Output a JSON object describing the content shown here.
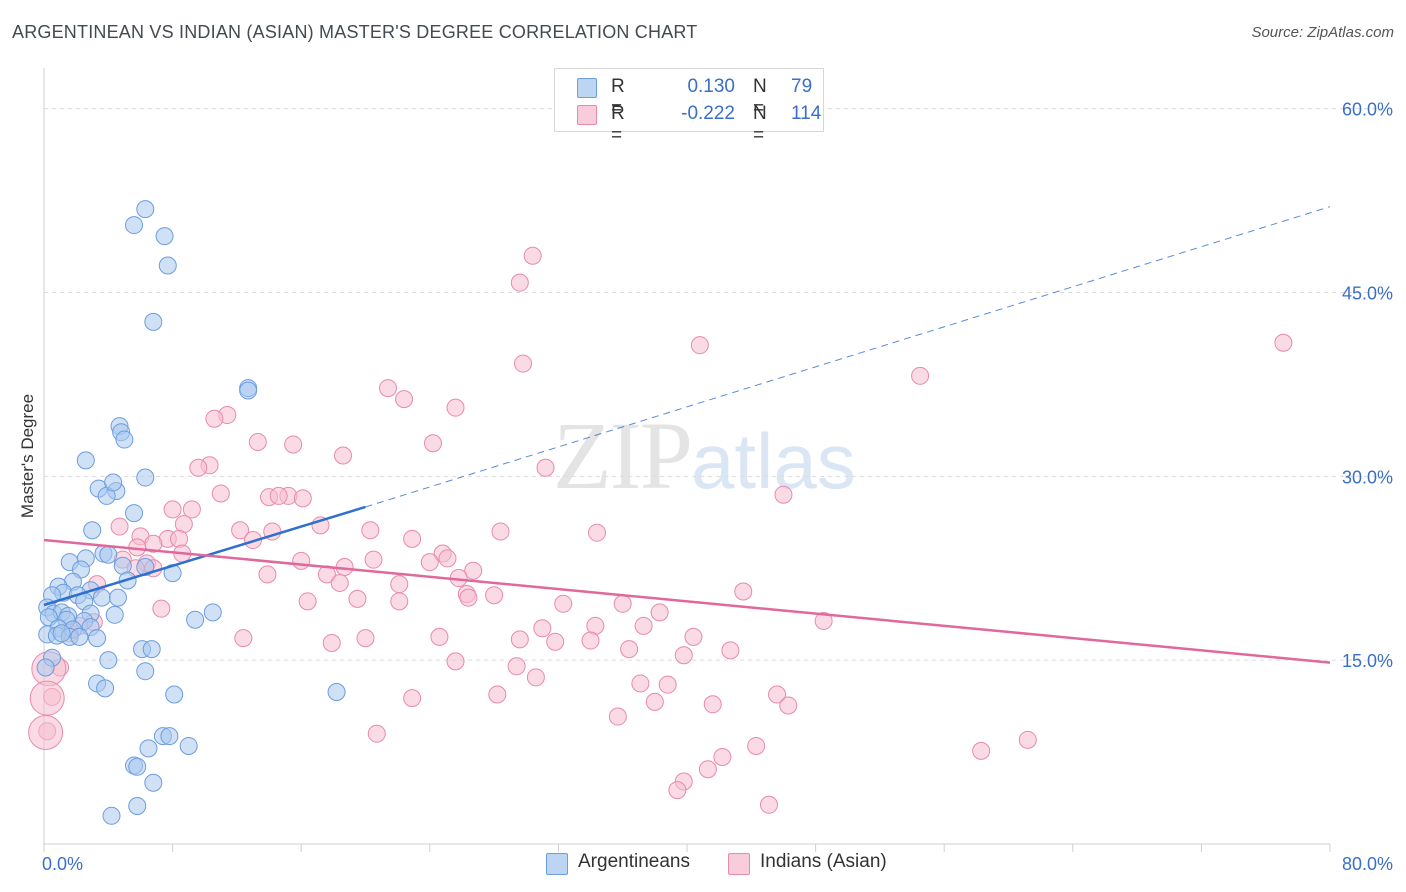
{
  "title": "ARGENTINEAN VS INDIAN (ASIAN) MASTER'S DEGREE CORRELATION CHART",
  "source": "Source: ZipAtlas.com",
  "watermark": {
    "zip": "ZIP",
    "atlas": "atlas"
  },
  "legend": {
    "r_label": "R =",
    "n_label": "N =",
    "argentineans": {
      "r": "0.130",
      "n": "79"
    },
    "indians": {
      "r": "-0.222",
      "n": "114"
    }
  },
  "colors": {
    "blue_fill": "#a9c8ef",
    "blue_stroke": "#6b9de0",
    "blue_line": "#2f6fcf",
    "pink_fill": "#f6bdd0",
    "pink_stroke": "#e88aaa",
    "pink_line": "#e0689a",
    "axis_label": "#3a6fc9",
    "grid": "#dcdcdc"
  },
  "chart_data": {
    "type": "scatter",
    "title": "ARGENTINEAN VS INDIAN (ASIAN) MASTER'S DEGREE CORRELATION CHART",
    "xlabel": "",
    "ylabel": "Master's Degree",
    "xlim": [
      0,
      80
    ],
    "ylim": [
      0,
      62.5
    ],
    "x_tick_labels": [
      {
        "value": 0,
        "label": "0.0%"
      },
      {
        "value": 80,
        "label": "80.0%"
      }
    ],
    "y_tick_labels": [
      {
        "value": 15,
        "label": "15.0%"
      },
      {
        "value": 30,
        "label": "30.0%"
      },
      {
        "value": 45,
        "label": "45.0%"
      },
      {
        "value": 60,
        "label": "60.0%"
      }
    ],
    "legend_position": "top-center",
    "series": [
      {
        "name": "Argentineans",
        "r": 0.13,
        "n": 79,
        "trend": {
          "x0": 0,
          "y0": 19.5,
          "x1": 20,
          "y1": 27.5,
          "dashed_to_x": 80,
          "dashed_to_y": 52
        },
        "points": [
          [
            6.3,
            51.8
          ],
          [
            5.6,
            50.5
          ],
          [
            7.5,
            49.6
          ],
          [
            7.7,
            47.2
          ],
          [
            6.8,
            42.6
          ],
          [
            12.7,
            37.2
          ],
          [
            12.7,
            37.0
          ],
          [
            4.7,
            34.1
          ],
          [
            4.8,
            33.6
          ],
          [
            5.0,
            33.0
          ],
          [
            2.6,
            31.3
          ],
          [
            6.3,
            29.9
          ],
          [
            3.4,
            29.0
          ],
          [
            4.5,
            28.8
          ],
          [
            3.9,
            28.4
          ],
          [
            5.6,
            27.0
          ],
          [
            3.0,
            25.6
          ],
          [
            4.3,
            29.5
          ],
          [
            3.7,
            23.7
          ],
          [
            4.0,
            23.6
          ],
          [
            2.6,
            23.3
          ],
          [
            1.6,
            23.0
          ],
          [
            4.9,
            22.7
          ],
          [
            6.3,
            22.6
          ],
          [
            2.3,
            22.4
          ],
          [
            8.0,
            22.1
          ],
          [
            5.2,
            21.5
          ],
          [
            1.8,
            21.4
          ],
          [
            0.9,
            21.0
          ],
          [
            2.9,
            20.7
          ],
          [
            1.2,
            20.5
          ],
          [
            2.1,
            20.3
          ],
          [
            3.6,
            20.1
          ],
          [
            0.5,
            20.3
          ],
          [
            4.6,
            20.1
          ],
          [
            2.5,
            19.8
          ],
          [
            0.2,
            19.3
          ],
          [
            0.6,
            18.8
          ],
          [
            1.1,
            18.9
          ],
          [
            2.9,
            18.8
          ],
          [
            1.5,
            18.6
          ],
          [
            4.4,
            18.7
          ],
          [
            10.5,
            18.9
          ],
          [
            0.3,
            18.5
          ],
          [
            1.4,
            18.3
          ],
          [
            2.5,
            18.2
          ],
          [
            9.4,
            18.3
          ],
          [
            0.9,
            17.6
          ],
          [
            1.8,
            17.5
          ],
          [
            2.9,
            17.7
          ],
          [
            0.2,
            17.1
          ],
          [
            0.8,
            17.0
          ],
          [
            1.6,
            16.9
          ],
          [
            2.2,
            16.9
          ],
          [
            1.1,
            17.2
          ],
          [
            3.3,
            16.8
          ],
          [
            6.1,
            15.9
          ],
          [
            6.7,
            15.9
          ],
          [
            0.5,
            15.2
          ],
          [
            4.0,
            15.0
          ],
          [
            0.1,
            14.4
          ],
          [
            6.3,
            14.1
          ],
          [
            3.3,
            13.1
          ],
          [
            3.8,
            12.7
          ],
          [
            8.1,
            12.2
          ],
          [
            18.2,
            12.4
          ],
          [
            7.4,
            8.8
          ],
          [
            7.8,
            8.8
          ],
          [
            6.5,
            7.8
          ],
          [
            9.0,
            8.0
          ],
          [
            5.6,
            6.4
          ],
          [
            5.8,
            6.3
          ],
          [
            6.8,
            5.0
          ],
          [
            5.8,
            3.1
          ],
          [
            4.2,
            2.3
          ]
        ]
      },
      {
        "name": "Indians (Asian)",
        "r": -0.222,
        "n": 114,
        "trend": {
          "x0": 0,
          "y0": 24.8,
          "x1": 80,
          "y1": 14.8
        },
        "points": [
          [
            30.4,
            48.0
          ],
          [
            29.6,
            45.8
          ],
          [
            40.8,
            40.7
          ],
          [
            77.1,
            40.9
          ],
          [
            29.8,
            39.2
          ],
          [
            54.5,
            38.2
          ],
          [
            21.4,
            37.2
          ],
          [
            22.4,
            36.3
          ],
          [
            25.6,
            35.6
          ],
          [
            11.4,
            35.0
          ],
          [
            10.6,
            34.7
          ],
          [
            13.3,
            32.8
          ],
          [
            15.5,
            32.6
          ],
          [
            24.2,
            32.7
          ],
          [
            18.6,
            31.7
          ],
          [
            10.3,
            30.9
          ],
          [
            9.6,
            30.7
          ],
          [
            31.2,
            30.7
          ],
          [
            11.0,
            28.6
          ],
          [
            46.0,
            28.5
          ],
          [
            14.0,
            28.3
          ],
          [
            15.2,
            28.4
          ],
          [
            14.6,
            28.4
          ],
          [
            16.1,
            28.2
          ],
          [
            8.0,
            27.3
          ],
          [
            9.2,
            27.3
          ],
          [
            8.7,
            26.1
          ],
          [
            4.7,
            25.9
          ],
          [
            17.2,
            26.0
          ],
          [
            12.2,
            25.6
          ],
          [
            14.2,
            25.5
          ],
          [
            20.3,
            25.6
          ],
          [
            28.4,
            25.5
          ],
          [
            34.4,
            25.4
          ],
          [
            6.0,
            25.1
          ],
          [
            7.7,
            24.9
          ],
          [
            8.4,
            24.9
          ],
          [
            13.0,
            24.8
          ],
          [
            22.9,
            24.9
          ],
          [
            6.8,
            24.5
          ],
          [
            5.8,
            24.2
          ],
          [
            8.6,
            23.7
          ],
          [
            24.8,
            23.7
          ],
          [
            4.9,
            23.2
          ],
          [
            16.0,
            23.1
          ],
          [
            25.1,
            23.3
          ],
          [
            20.5,
            23.2
          ],
          [
            24.0,
            23.0
          ],
          [
            6.4,
            22.9
          ],
          [
            5.7,
            22.5
          ],
          [
            6.8,
            22.5
          ],
          [
            18.7,
            22.6
          ],
          [
            26.7,
            22.3
          ],
          [
            17.6,
            22.0
          ],
          [
            13.9,
            22.0
          ],
          [
            25.8,
            21.7
          ],
          [
            3.3,
            21.2
          ],
          [
            18.4,
            21.3
          ],
          [
            26.3,
            20.4
          ],
          [
            22.1,
            21.2
          ],
          [
            43.5,
            20.6
          ],
          [
            28.0,
            20.3
          ],
          [
            26.4,
            20.1
          ],
          [
            19.5,
            20.0
          ],
          [
            22.1,
            19.8
          ],
          [
            16.4,
            19.8
          ],
          [
            32.3,
            19.6
          ],
          [
            36.0,
            19.6
          ],
          [
            7.3,
            19.2
          ],
          [
            38.3,
            18.9
          ],
          [
            48.5,
            18.2
          ],
          [
            3.1,
            18.1
          ],
          [
            2.2,
            17.8
          ],
          [
            1.6,
            17.2
          ],
          [
            34.3,
            17.8
          ],
          [
            31.0,
            17.6
          ],
          [
            37.3,
            17.8
          ],
          [
            40.4,
            16.9
          ],
          [
            12.4,
            16.8
          ],
          [
            20.0,
            16.8
          ],
          [
            24.6,
            16.9
          ],
          [
            29.6,
            16.7
          ],
          [
            31.8,
            16.5
          ],
          [
            34.0,
            16.6
          ],
          [
            36.4,
            15.9
          ],
          [
            42.7,
            15.8
          ],
          [
            17.9,
            16.4
          ],
          [
            39.8,
            15.4
          ],
          [
            25.6,
            14.9
          ],
          [
            29.4,
            14.5
          ],
          [
            1.0,
            14.4
          ],
          [
            30.6,
            13.6
          ],
          [
            37.1,
            13.1
          ],
          [
            38.8,
            13.0
          ],
          [
            0.5,
            12.0
          ],
          [
            22.9,
            11.9
          ],
          [
            28.2,
            12.2
          ],
          [
            45.6,
            12.2
          ],
          [
            38.0,
            11.6
          ],
          [
            41.6,
            11.4
          ],
          [
            46.3,
            11.3
          ],
          [
            35.7,
            10.4
          ],
          [
            20.7,
            9.0
          ],
          [
            0.2,
            9.2
          ],
          [
            58.3,
            7.6
          ],
          [
            61.2,
            8.5
          ],
          [
            44.3,
            8.0
          ],
          [
            42.2,
            7.1
          ],
          [
            41.3,
            6.1
          ],
          [
            39.8,
            5.1
          ],
          [
            39.4,
            4.4
          ],
          [
            45.1,
            3.2
          ]
        ],
        "large_points": [
          [
            0.3,
            14.3
          ],
          [
            0.2,
            11.9
          ],
          [
            0.1,
            9.1
          ]
        ]
      }
    ]
  },
  "bottom_legend": {
    "argentineans": "Argentineans",
    "indians": "Indians (Asian)"
  }
}
